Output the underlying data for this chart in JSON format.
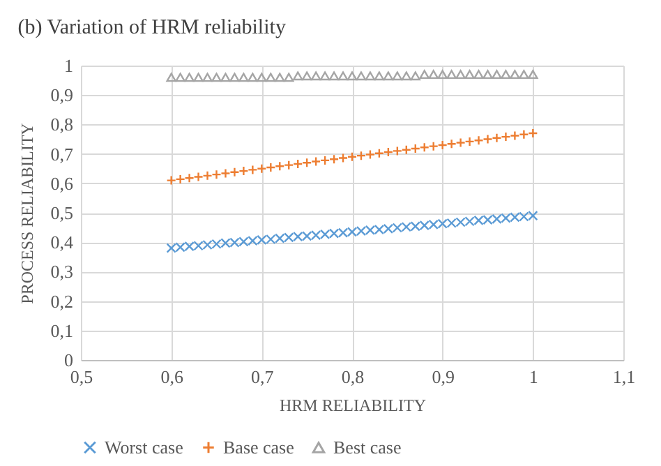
{
  "chart_data": {
    "type": "scatter",
    "title": "(b) Variation of HRM reliability",
    "xlabel": "HRM RELIABILITY",
    "ylabel": "PROCESS RELIABILITY",
    "x": [
      0.6,
      0.61,
      0.62,
      0.63,
      0.64,
      0.65,
      0.66,
      0.67,
      0.68,
      0.69,
      0.7,
      0.71,
      0.72,
      0.73,
      0.74,
      0.75,
      0.76,
      0.77,
      0.78,
      0.79,
      0.8,
      0.81,
      0.82,
      0.83,
      0.84,
      0.85,
      0.86,
      0.87,
      0.88,
      0.89,
      0.9,
      0.91,
      0.92,
      0.93,
      0.94,
      0.95,
      0.96,
      0.97,
      0.98,
      0.99,
      1.0
    ],
    "series": [
      {
        "name": "Worst case",
        "color": "#5b9bd5",
        "marker": "cross",
        "values": [
          0.38,
          0.383,
          0.386,
          0.388,
          0.391,
          0.394,
          0.397,
          0.399,
          0.402,
          0.405,
          0.408,
          0.41,
          0.413,
          0.416,
          0.419,
          0.421,
          0.424,
          0.427,
          0.43,
          0.432,
          0.435,
          0.438,
          0.441,
          0.443,
          0.446,
          0.449,
          0.452,
          0.454,
          0.457,
          0.46,
          0.463,
          0.465,
          0.468,
          0.471,
          0.474,
          0.476,
          0.479,
          0.482,
          0.485,
          0.487,
          0.49
        ]
      },
      {
        "name": "Base case",
        "color": "#ed7d31",
        "marker": "plus",
        "values": [
          0.61,
          0.614,
          0.618,
          0.622,
          0.626,
          0.63,
          0.634,
          0.638,
          0.642,
          0.646,
          0.65,
          0.654,
          0.658,
          0.662,
          0.666,
          0.67,
          0.674,
          0.678,
          0.682,
          0.686,
          0.69,
          0.694,
          0.698,
          0.702,
          0.706,
          0.71,
          0.714,
          0.718,
          0.722,
          0.726,
          0.73,
          0.734,
          0.738,
          0.742,
          0.746,
          0.75,
          0.754,
          0.758,
          0.762,
          0.766,
          0.77
        ]
      },
      {
        "name": "Best case",
        "color": "#a5a5a5",
        "marker": "triangle",
        "values": [
          0.96,
          0.96,
          0.96,
          0.96,
          0.96,
          0.96,
          0.96,
          0.96,
          0.96,
          0.96,
          0.96,
          0.96,
          0.96,
          0.96,
          0.965,
          0.965,
          0.965,
          0.965,
          0.965,
          0.965,
          0.965,
          0.965,
          0.965,
          0.965,
          0.965,
          0.965,
          0.965,
          0.965,
          0.97,
          0.97,
          0.97,
          0.97,
          0.97,
          0.97,
          0.97,
          0.97,
          0.97,
          0.97,
          0.97,
          0.97,
          0.97
        ]
      }
    ],
    "xlim": [
      0.5,
      1.1
    ],
    "xticks": [
      {
        "value": 0.5,
        "label": "0,5"
      },
      {
        "value": 0.6,
        "label": "0,6"
      },
      {
        "value": 0.7,
        "label": "0,7"
      },
      {
        "value": 0.8,
        "label": "0,8"
      },
      {
        "value": 0.9,
        "label": "0,9"
      },
      1,
      {
        "value": 1.1,
        "label": "1,1"
      }
    ],
    "ylim": [
      0,
      1
    ],
    "yticks": [
      0,
      {
        "value": 0.1,
        "label": "0,1"
      },
      {
        "value": 0.2,
        "label": "0,2"
      },
      {
        "value": 0.3,
        "label": "0,3"
      },
      {
        "value": 0.4,
        "label": "0,4"
      },
      {
        "value": 0.5,
        "label": "0,5"
      },
      {
        "value": 0.6,
        "label": "0,6"
      },
      {
        "value": 0.7,
        "label": "0,7"
      },
      {
        "value": 0.8,
        "label": "0,8"
      },
      {
        "value": 0.9,
        "label": "0,9"
      },
      1
    ],
    "grid": true,
    "legend": "bottom"
  }
}
